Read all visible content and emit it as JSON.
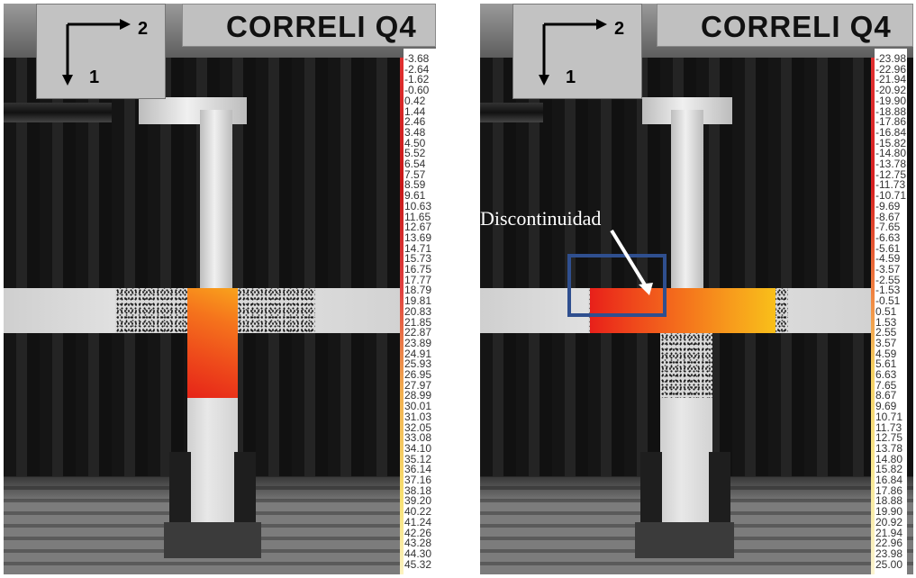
{
  "panels": [
    {
      "title": "CORRELI Q4",
      "axis_labels": {
        "horizontal": "2",
        "vertical": "1"
      },
      "colorbar_labels": [
        "-3.68",
        "-2.64",
        "-1.62",
        "-0.60",
        "0.42",
        "1.44",
        "2.46",
        "3.48",
        "4.50",
        "5.52",
        "6.54",
        "7.57",
        "8.59",
        "9.61",
        "10.63",
        "11.65",
        "12.67",
        "13.69",
        "14.71",
        "15.73",
        "16.75",
        "17.77",
        "18.79",
        "19.81",
        "20.83",
        "21.85",
        "22.87",
        "23.89",
        "24.91",
        "25.93",
        "26.95",
        "27.97",
        "28.99",
        "30.01",
        "31.03",
        "32.05",
        "33.08",
        "34.10",
        "35.12",
        "36.14",
        "37.16",
        "38.18",
        "39.20",
        "40.22",
        "41.24",
        "42.26",
        "43.28",
        "44.30",
        "45.32"
      ]
    },
    {
      "title": "CORRELI Q4",
      "axis_labels": {
        "horizontal": "2",
        "vertical": "1"
      },
      "colorbar_labels": [
        "-23.98",
        "-22.96",
        "-21.94",
        "-20.92",
        "-19.90",
        "-18.88",
        "-17.86",
        "-16.84",
        "-15.82",
        "-14.80",
        "-13.78",
        "-12.75",
        "-11.73",
        "-10.71",
        "-9.69",
        "-8.67",
        "-7.65",
        "-6.63",
        "-5.61",
        "-4.59",
        "-3.57",
        "-2.55",
        "-1.53",
        "-0.51",
        "0.51",
        "1.53",
        "2.55",
        "3.57",
        "4.59",
        "5.61",
        "6.63",
        "7.65",
        "8.67",
        "9.69",
        "10.71",
        "11.73",
        "12.75",
        "13.78",
        "14.80",
        "15.82",
        "16.84",
        "17.86",
        "18.88",
        "19.90",
        "20.92",
        "21.94",
        "22.96",
        "23.98",
        "25.00"
      ],
      "annotation": "Discontinuidad"
    }
  ],
  "colors": {
    "field_red": "#e8281a",
    "field_orange": "#f57a1c",
    "field_yellow": "#f9c21a",
    "annotation_box": "#2f4f8f"
  }
}
